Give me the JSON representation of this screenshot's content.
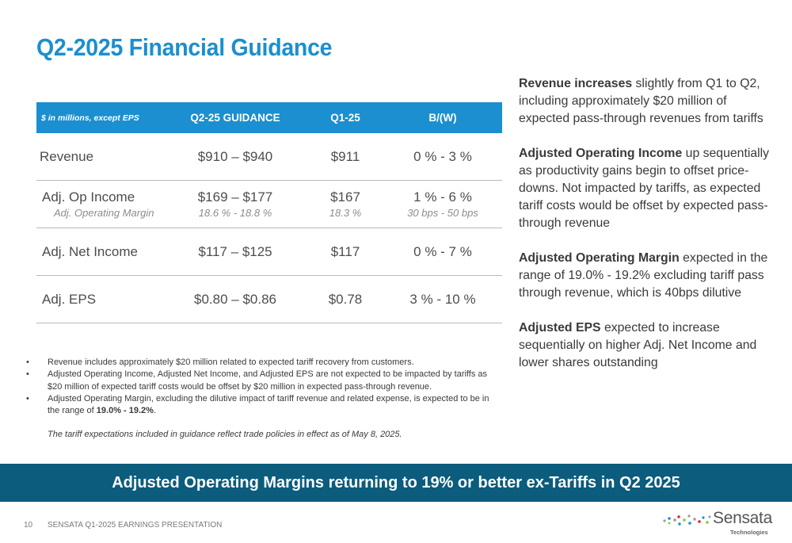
{
  "title": "Q2-2025 Financial Guidance",
  "table": {
    "header": {
      "label": "$ in millions, except EPS",
      "guidance": "Q2-25 GUIDANCE",
      "q1": "Q1-25",
      "bw": "B/(W)"
    },
    "rows": [
      {
        "label": "Revenue",
        "guidance": "$910 – $940",
        "q1": "$911",
        "bw": "0 % - 3 %"
      },
      {
        "label": "Adj. Op Income",
        "guidance": "$169 – $177",
        "q1": "$167",
        "bw": "1 % - 6 %",
        "sub_label": "Adj. Operating Margin",
        "sub_guidance": "18.6 % - 18.8 %",
        "sub_q1": "18.3 %",
        "sub_bw": "30 bps - 50 bps"
      },
      {
        "label": "Adj. Net Income",
        "guidance": "$117 – $125",
        "q1": "$117",
        "bw": "0 % - 7 %"
      },
      {
        "label": "Adj. EPS",
        "guidance": "$0.80 – $0.86",
        "q1": "$0.78",
        "bw": "3 % - 10 %"
      }
    ]
  },
  "notes": {
    "bullet_glyph": "•",
    "items": [
      {
        "text": "Revenue includes approximately $20 million related to expected tariff recovery from customers."
      },
      {
        "text": "Adjusted Operating Income, Adjusted Net Income, and Adjusted EPS are not expected to be impacted by tariffs as $20 million of expected tariff costs would be offset by $20 million in expected pass-through revenue."
      },
      {
        "text": "Adjusted Operating Margin, excluding the dilutive impact of tariff revenue and related expense, is expected to be in the range of ",
        "bold": "19.0% - 19.2%",
        "tail": "."
      }
    ],
    "disclaimer": "The tariff expectations included in guidance reflect trade policies in effect as of May 8, 2025."
  },
  "commentary": [
    {
      "bold": "Revenue increases",
      "text": " slightly from Q1 to Q2, including approximately $20 million of expected pass-through revenues from tariffs"
    },
    {
      "bold": "Adjusted Operating Income",
      "text": " up sequentially as productivity gains begin to offset price-downs. Not impacted by tariffs, as expected tariff costs would be offset by expected pass-through revenue"
    },
    {
      "bold": "Adjusted Operating Margin",
      "text": " expected in the range of 19.0% - 19.2% excluding tariff pass through revenue, which is 40bps dilutive"
    },
    {
      "bold": "Adjusted EPS",
      "text": " expected to increase sequentially on higher Adj. Net Income and lower shares outstanding"
    }
  ],
  "banner": "Adjusted Operating Margins returning to 19% or better ex-Tariffs in Q2 2025",
  "footer": {
    "page": "10",
    "text": "SENSATA  Q1-2025 EARNINGS PRESENTATION"
  },
  "logo": {
    "name": "Sensata",
    "tagline": "Technologies"
  },
  "colors": {
    "title_blue": "#1b8fcf",
    "header_blue": "#1b8fcf",
    "banner_teal": "#0b5c7d"
  }
}
